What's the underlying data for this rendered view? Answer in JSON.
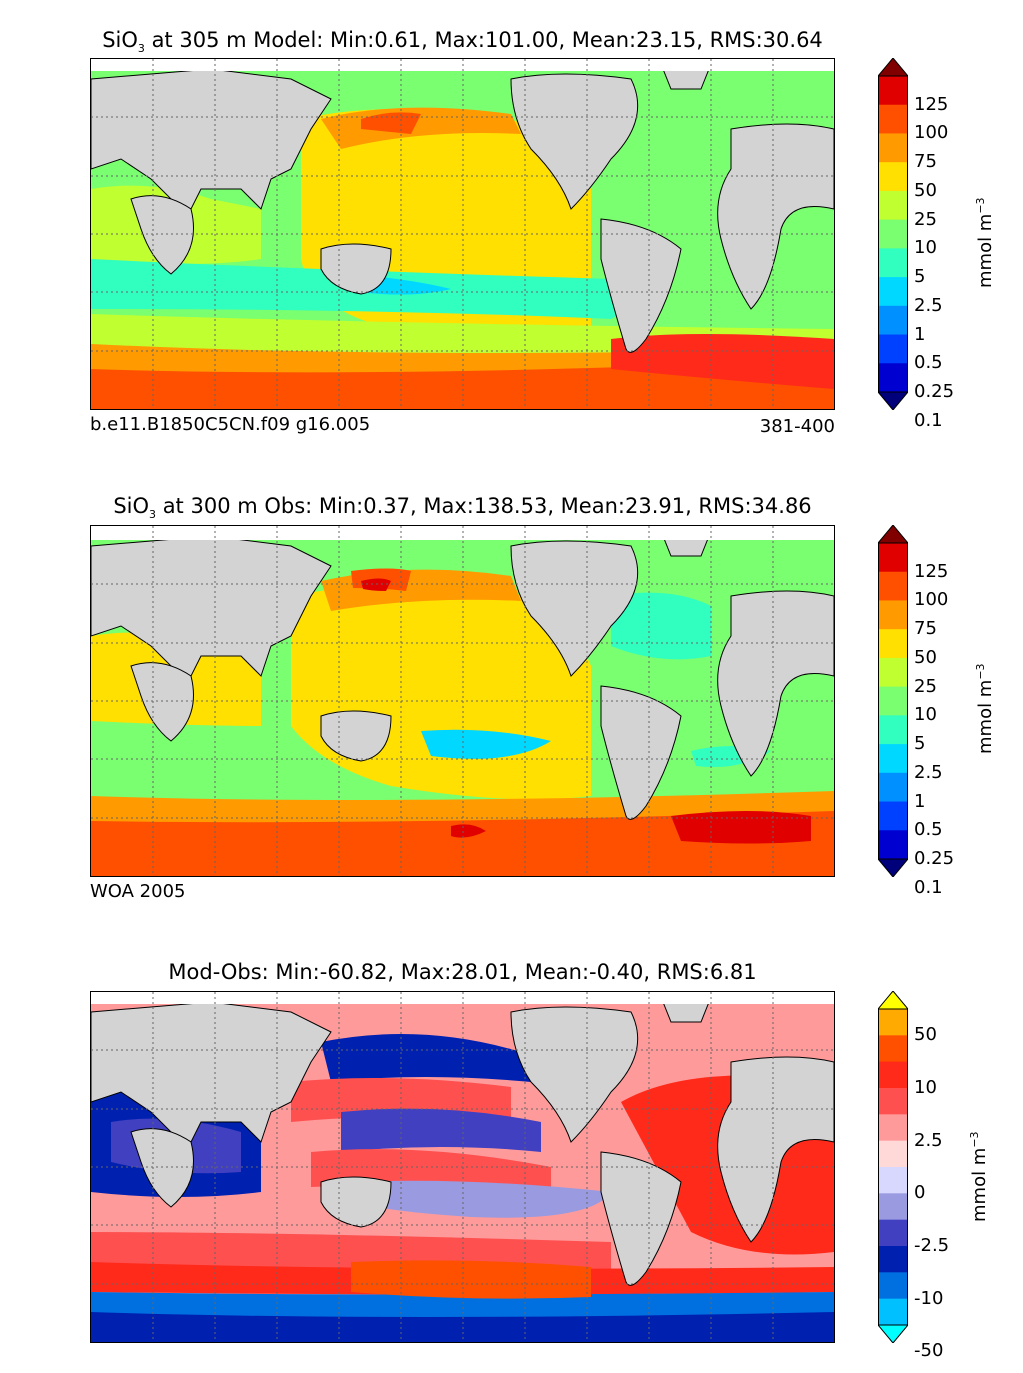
{
  "panels": [
    {
      "title_var": "SiO",
      "title_sub": "3",
      "title_rest": " at 305 m Model: Min:0.61, Max:101.00, Mean:23.15, RMS:30.64",
      "footer_left": "b.e11.B1850C5CN.f09 g16.005",
      "footer_right": "381-400",
      "colorbar_labels": [
        "125",
        "100",
        "75",
        "50",
        "25",
        "10",
        "5",
        "2.5",
        "1",
        "0.5",
        "0.25",
        "0.1"
      ],
      "colorbar_colors": [
        "#800000",
        "#e00000",
        "#ff5000",
        "#ff9a00",
        "#ffe000",
        "#c0ff30",
        "#7aff70",
        "#30ffc0",
        "#00d8ff",
        "#0090ff",
        "#0040ff",
        "#0000d0",
        "#00007a"
      ],
      "unit": "mmol m",
      "unit_sup": "−3"
    },
    {
      "title_var": "SiO",
      "title_sub": "3",
      "title_rest": " at 300 m Obs: Min:0.37, Max:138.53, Mean:23.91, RMS:34.86",
      "footer_left": "WOA 2005",
      "footer_right": "",
      "colorbar_labels": [
        "125",
        "100",
        "75",
        "50",
        "25",
        "10",
        "5",
        "2.5",
        "1",
        "0.5",
        "0.25",
        "0.1"
      ],
      "colorbar_colors": [
        "#800000",
        "#e00000",
        "#ff5000",
        "#ff9a00",
        "#ffe000",
        "#c0ff30",
        "#7aff70",
        "#30ffc0",
        "#00d8ff",
        "#0090ff",
        "#0040ff",
        "#0000d0",
        "#00007a"
      ],
      "unit": "mmol m",
      "unit_sup": "−3"
    },
    {
      "title_var": "",
      "title_sub": "",
      "title_rest": "Mod-Obs: Min:-60.82, Max:28.01, Mean:-0.40, RMS:6.81",
      "footer_left": "",
      "footer_right": "",
      "colorbar_labels": [
        "50",
        "10",
        "2.5",
        "0",
        "-2.5",
        "-10",
        "-50"
      ],
      "colorbar_colors": [
        "#ffff00",
        "#ffaa00",
        "#ff5000",
        "#ff2a1a",
        "#ff5050",
        "#ff9a9a",
        "#ffd8d8",
        "#d8d8ff",
        "#9a9ae0",
        "#4040c0",
        "#0020b0",
        "#0070e0",
        "#00c0ff",
        "#00ffff"
      ],
      "unit": "mmol m",
      "unit_sup": "−3"
    }
  ],
  "colors": {
    "land": "#d3d3d3",
    "sea_ice": "#ffffff",
    "grid": "#666666"
  }
}
